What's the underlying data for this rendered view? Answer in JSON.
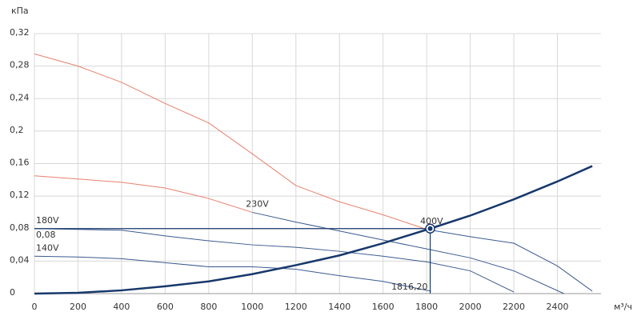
{
  "chart_data": {
    "type": "line",
    "y_label": "кПа",
    "x_label": "м³/ч",
    "xlim": [
      0,
      2600
    ],
    "ylim": [
      0,
      0.32
    ],
    "xticks": [
      0,
      200,
      400,
      600,
      800,
      1000,
      1200,
      1400,
      1600,
      1800,
      2000,
      2200,
      2400
    ],
    "yticks": [
      {
        "value": 0,
        "label": "0"
      },
      {
        "value": 0.04,
        "label": "0,04"
      },
      {
        "value": 0.08,
        "label": "0,08"
      },
      {
        "value": 0.12,
        "label": "0,12"
      },
      {
        "value": 0.16,
        "label": "0,16"
      },
      {
        "value": 0.2,
        "label": "0,2"
      },
      {
        "value": 0.24,
        "label": "0,24"
      },
      {
        "value": 0.28,
        "label": "0,28"
      },
      {
        "value": 0.32,
        "label": "0,32"
      }
    ],
    "grid": true,
    "series": [
      {
        "color": "#e8806e",
        "x": [
          0,
          200,
          400,
          600,
          800,
          1000,
          1200,
          1400,
          1600,
          1800
        ],
        "values": [
          0.295,
          0.28,
          0.26,
          0.234,
          0.21,
          0.172,
          0.133,
          0.113,
          0.097,
          0.079
        ]
      },
      {
        "name": "400V",
        "color": "#3b5a8f",
        "x": [
          1800,
          2000,
          2200,
          2400,
          2560
        ],
        "values": [
          0.079,
          0.07,
          0.062,
          0.034,
          0.003
        ]
      },
      {
        "color": "#e8806e",
        "x": [
          0,
          200,
          400,
          600,
          800,
          1000
        ],
        "values": [
          0.145,
          0.141,
          0.137,
          0.13,
          0.117,
          0.1
        ]
      },
      {
        "name": "230V",
        "color": "#3b5a8f",
        "x": [
          1000,
          1200,
          1400,
          1600,
          1800,
          2000,
          2200,
          2430
        ],
        "values": [
          0.1,
          0.088,
          0.077,
          0.066,
          0.055,
          0.044,
          0.028,
          0
        ]
      },
      {
        "name": "180V",
        "color": "#3b5a8f",
        "x": [
          0,
          200,
          400,
          600,
          800,
          1000,
          1200,
          1400,
          1600,
          1800,
          2000,
          2200
        ],
        "values": [
          0.08,
          0.079,
          0.078,
          0.071,
          0.065,
          0.06,
          0.057,
          0.052,
          0.046,
          0.039,
          0.028,
          0.002
        ]
      },
      {
        "name": "140V",
        "color": "#3b5a8f",
        "x": [
          0,
          200,
          400,
          600,
          800,
          1000,
          1200,
          1400,
          1600,
          1820
        ],
        "values": [
          0.046,
          0.045,
          0.043,
          0.038,
          0.033,
          0.033,
          0.03,
          0.022,
          0.015,
          0.003
        ]
      },
      {
        "color": "#17386b",
        "width": 2.5,
        "x": [
          0,
          200,
          400,
          600,
          800,
          1000,
          1200,
          1400,
          1600,
          1816.2,
          2000,
          2200,
          2400,
          2560
        ],
        "values": [
          0,
          0.001,
          0.004,
          0.009,
          0.015,
          0.024,
          0.035,
          0.047,
          0.062,
          0.08,
          0.096,
          0.116,
          0.138,
          0.157
        ]
      }
    ],
    "operating_point": {
      "x": 1816.2,
      "y": 0.08,
      "x_label": "1816,20",
      "y_label": "0,08",
      "color": "#17386b"
    }
  }
}
